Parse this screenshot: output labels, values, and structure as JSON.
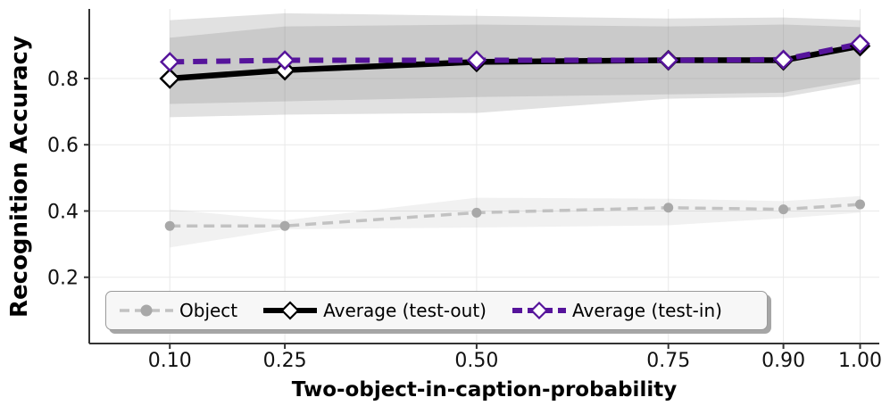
{
  "figure": {
    "background": "#ffffff"
  },
  "chart_data": {
    "type": "line",
    "title": "",
    "xlabel": "Two-object-in-caption-probability",
    "ylabel": "Recognition Accuracy",
    "x": [
      0.1,
      0.25,
      0.5,
      0.75,
      0.9,
      1.0
    ],
    "x_tick_labels": [
      "0.10",
      "0.25",
      "0.50",
      "0.75",
      "0.90",
      "1.00"
    ],
    "y_ticks": [
      0.2,
      0.4,
      0.6,
      0.8
    ],
    "y_tick_labels": [
      "0.2",
      "0.4",
      "0.6",
      "0.8"
    ],
    "xlim": [
      -0.005,
      1.025
    ],
    "ylim": [
      0,
      1.01
    ],
    "grid": true,
    "gridline_color": "#e9e9e9",
    "axis_color": "#333333",
    "tick_label_color": "#111111",
    "legend": {
      "position": "lower center",
      "background": "#f7f7f7",
      "border_color": "#9a9a9a"
    },
    "series": [
      {
        "name": "Object",
        "color": "#c2c2c2",
        "marker": "circle",
        "marker_color": "#a8a8a8",
        "line_style": "dashed",
        "dash": "12 7",
        "line_width": 3.5,
        "marker_size": 5.5,
        "values": [
          0.355,
          0.355,
          0.395,
          0.41,
          0.405,
          0.42
        ],
        "band_low": [
          0.29,
          0.345,
          0.35,
          0.357,
          0.378,
          0.395
        ],
        "band_high": [
          0.405,
          0.372,
          0.44,
          0.437,
          0.43,
          0.445
        ],
        "band_color": "rgba(170,170,170,0.16)"
      },
      {
        "name": "Average (test-out)",
        "color": "#000000",
        "marker": "diamond",
        "marker_color": "#ffffff",
        "line_style": "solid",
        "dash": "",
        "line_width": 6.5,
        "marker_size": 10,
        "values": [
          0.8,
          0.825,
          0.85,
          0.855,
          0.855,
          0.898
        ],
        "band_low": [
          0.683,
          0.691,
          0.696,
          0.739,
          0.744,
          0.784
        ],
        "band_high": [
          0.923,
          0.957,
          0.963,
          0.957,
          0.963,
          0.955
        ],
        "band_color": "rgba(130,130,130,0.24)"
      },
      {
        "name": "Average (test-in)",
        "color": "#56149b",
        "marker": "diamond",
        "marker_color": "#ffffff",
        "line_style": "dashed",
        "dash": "16 10",
        "line_width": 6,
        "marker_size": 9.5,
        "values": [
          0.85,
          0.855,
          0.855,
          0.855,
          0.857,
          0.905
        ],
        "band_low": [
          0.723,
          0.731,
          0.744,
          0.752,
          0.757,
          0.797
        ],
        "band_high": [
          0.976,
          0.997,
          0.989,
          0.981,
          0.984,
          0.976
        ],
        "band_color": "rgba(130,130,130,0.24)"
      }
    ]
  }
}
